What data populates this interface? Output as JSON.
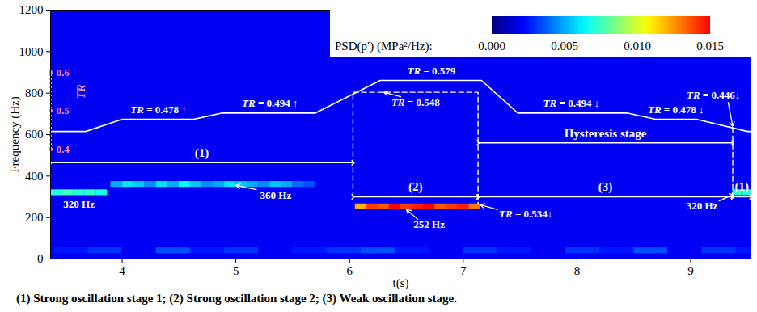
{
  "chart_data": {
    "type": "spectrogram",
    "xlabel": "t(s)",
    "ylabel": "Frequency (Hz)",
    "y2label": "TR",
    "xlim": [
      3.37,
      9.53
    ],
    "xticks": [
      4,
      5,
      6,
      7,
      8,
      9
    ],
    "ylim": [
      0,
      1200
    ],
    "yticks": [
      0,
      200,
      400,
      600,
      800,
      1000,
      1200
    ],
    "y2lim": [
      0.4,
      0.6
    ],
    "y2ticks": [
      0.4,
      0.5,
      0.6
    ],
    "series": [
      {
        "name": "TR",
        "axis": "y2",
        "color": "#ffffff",
        "type": "line",
        "x": [
          3.37,
          3.68,
          4.0,
          4.63,
          4.88,
          5.7,
          6.27,
          7.16,
          7.48,
          8.44,
          8.69,
          9.05,
          9.5,
          9.53
        ],
        "values": [
          0.446,
          0.446,
          0.478,
          0.478,
          0.494,
          0.494,
          0.579,
          0.579,
          0.494,
          0.494,
          0.478,
          0.478,
          0.446,
          0.446
        ]
      }
    ],
    "colorbar": {
      "label": "PSD(p′) (MPa²/Hz):",
      "range": [
        0,
        0.015
      ],
      "ticks": [
        {
          "value": 0,
          "label": "0.000"
        },
        0.005,
        {
          "value": 0.01,
          "label": "0.010"
        },
        0.015
      ]
    },
    "bands": [
      {
        "f": 320,
        "t0": 3.37,
        "dt": 0.1,
        "psd": [
          0.007,
          0.0075,
          0.007,
          0.0072,
          0.0068
        ]
      },
      {
        "f": 360,
        "t0": 3.9,
        "dt": 0.1,
        "psd": [
          0.005,
          0.006,
          0.0055,
          0.0045,
          0.006,
          0.005,
          0.0065,
          0.0055,
          0.0045,
          0.005,
          0.006,
          0.0055,
          0.005,
          0.0045,
          0.0055,
          0.005,
          0.004,
          0.0035
        ]
      },
      {
        "f": 252,
        "t0": 6.05,
        "dt": 0.1,
        "psd": [
          0.012,
          0.014,
          0.0135,
          0.015,
          0.014,
          0.0145,
          0.015,
          0.0135,
          0.014,
          0.0145,
          0.013
        ]
      },
      {
        "f": 320,
        "t0": 9.37,
        "dt": 0.04,
        "psd": [
          0.007,
          0.0072,
          0.0068,
          0.007
        ]
      },
      {
        "f": 40,
        "t0": 3.4,
        "dt": 0.3,
        "psd": [
          0.0025,
          0.003,
          0.002,
          0.0035,
          0.0025,
          0.003,
          0.002,
          0.0025,
          0.003,
          0.0035,
          0.0025,
          0.002,
          0.003,
          0.0025,
          0.002,
          0.003,
          0.0025,
          0.0035,
          0.002,
          0.003,
          0.0025
        ]
      }
    ],
    "dashed_lines": [
      {
        "t": [
          6.03,
          6.03,
          7.13,
          7.13
        ],
        "f": [
          300,
          804,
          804,
          264
        ]
      },
      {
        "t": [
          9.37,
          9.37
        ],
        "f": [
          632,
          300
        ]
      }
    ],
    "stages": [
      {
        "label": "(1)",
        "t": [
          3.37,
          6.03
        ],
        "f": 464
      },
      {
        "label": "(2)",
        "t": [
          6.03,
          7.13
        ],
        "f": 300
      },
      {
        "label": "(3)",
        "t": [
          7.13,
          9.37
        ],
        "f": 300
      },
      {
        "label": "Hysteresis stage",
        "t": [
          7.13,
          9.37
        ],
        "f": 560
      },
      {
        "label": "(1)",
        "t": [
          9.37,
          9.53
        ],
        "f": 300
      }
    ],
    "tr_labels": [
      {
        "text": "TR = 0.478 ↑",
        "t": 4.32,
        "tr": 0.478
      },
      {
        "text": "TR = 0.494 ↑",
        "t": 5.3,
        "tr": 0.494
      },
      {
        "text": "TR = 0.579",
        "t": 6.72,
        "tr": 0.579
      },
      {
        "text": "TR = 0.494 ↓",
        "t": 7.95,
        "tr": 0.494
      },
      {
        "text": "TR = 0.478 ↓",
        "t": 8.87,
        "tr": 0.478
      }
    ],
    "annotations": [
      {
        "text": "320 Hz",
        "t": 3.62,
        "f": 262
      },
      {
        "text": "360 Hz",
        "t": 5.35,
        "f": 305,
        "arrow": [
          [
            5.18,
            335
          ],
          [
            5.0,
            355
          ]
        ]
      },
      {
        "text": "252 Hz",
        "t": 6.7,
        "f": 165,
        "arrow": [
          [
            6.6,
            192
          ],
          [
            6.5,
            238
          ]
        ]
      },
      {
        "text": "320 Hz",
        "t": 9.1,
        "f": 255,
        "arrow": [
          [
            9.25,
            280
          ],
          [
            9.38,
            312
          ]
        ]
      },
      {
        "text": "TR = 0.548",
        "t": 6.58,
        "f": 755,
        "arrow": [
          [
            6.45,
            783
          ],
          [
            6.3,
            804
          ]
        ]
      },
      {
        "text": "TR = 0.534↓",
        "t": 7.55,
        "f": 215,
        "arrow": [
          [
            7.3,
            238
          ],
          [
            7.15,
            262
          ]
        ]
      },
      {
        "text": "TR = 0.446↓",
        "t": 9.2,
        "f": 790,
        "arrow": [
          [
            9.33,
            755
          ],
          [
            9.37,
            640
          ]
        ]
      }
    ],
    "caption": "(1) Strong oscillation stage 1; (2) Strong oscillation stage 2; (3) Weak oscillation stage."
  }
}
